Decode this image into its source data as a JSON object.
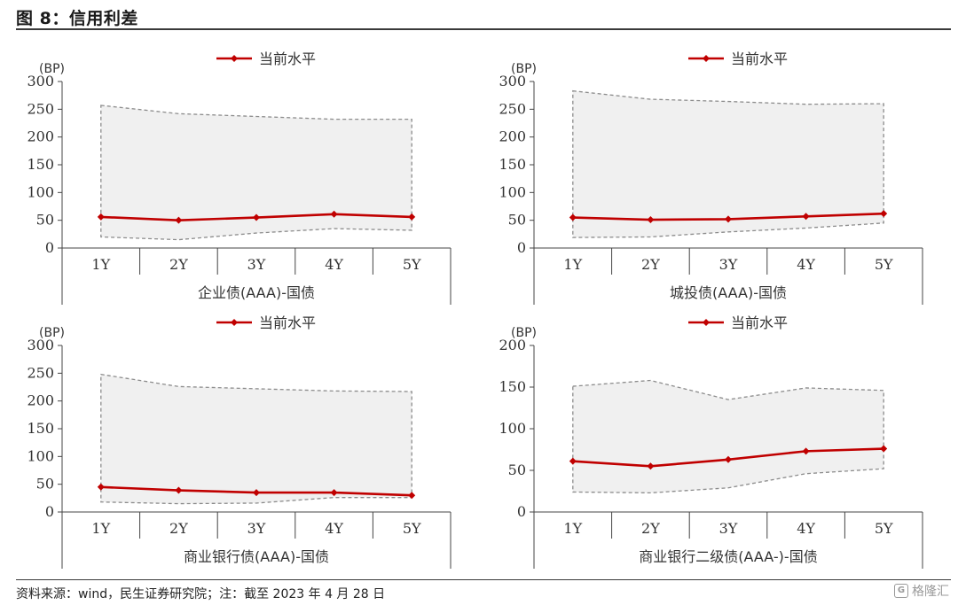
{
  "figure": {
    "title": "图 8：信用利差",
    "source": "资料来源：wind，民生证券研究院；注：截至 2023 年 4 月 28 日",
    "watermark": "格隆汇"
  },
  "colors": {
    "line": "#c00000",
    "band_fill": "#f0f0f0",
    "band_stroke": "#8c8c8c",
    "axis": "#444444"
  },
  "chart_data": [
    {
      "type": "line",
      "title": "",
      "xlabel": "企业债(AAA)-国债",
      "ylabel": "(BP)",
      "categories": [
        "1Y",
        "2Y",
        "3Y",
        "4Y",
        "5Y"
      ],
      "ylim": [
        0,
        300
      ],
      "yticks": [
        0,
        50,
        100,
        150,
        200,
        250,
        300
      ],
      "legend": "top-center",
      "series": [
        {
          "name": "当前水平",
          "values": [
            56,
            50,
            55,
            61,
            56
          ]
        }
      ],
      "range_band": {
        "upper": [
          257,
          242,
          237,
          232,
          232
        ],
        "lower": [
          20,
          15,
          27,
          35,
          32
        ]
      }
    },
    {
      "type": "line",
      "title": "",
      "xlabel": "城投债(AAA)-国债",
      "ylabel": "(BP)",
      "categories": [
        "1Y",
        "2Y",
        "3Y",
        "4Y",
        "5Y"
      ],
      "ylim": [
        0,
        300
      ],
      "yticks": [
        0,
        50,
        100,
        150,
        200,
        250,
        300
      ],
      "legend": "top-center",
      "series": [
        {
          "name": "当前水平",
          "values": [
            55,
            51,
            52,
            57,
            62
          ]
        }
      ],
      "range_band": {
        "upper": [
          283,
          268,
          264,
          259,
          260
        ],
        "lower": [
          19,
          20,
          29,
          36,
          45
        ]
      }
    },
    {
      "type": "line",
      "title": "",
      "xlabel": "商业银行债(AAA)-国债",
      "ylabel": "(BP)",
      "categories": [
        "1Y",
        "2Y",
        "3Y",
        "4Y",
        "5Y"
      ],
      "ylim": [
        0,
        300
      ],
      "yticks": [
        0,
        50,
        100,
        150,
        200,
        250,
        300
      ],
      "legend": "top-center",
      "series": [
        {
          "name": "当前水平",
          "values": [
            45,
            39,
            35,
            35,
            30
          ]
        }
      ],
      "range_band": {
        "upper": [
          248,
          226,
          222,
          218,
          217
        ],
        "lower": [
          18,
          15,
          16,
          26,
          26
        ]
      }
    },
    {
      "type": "line",
      "title": "",
      "xlabel": "商业银行二级债(AAA-)-国债",
      "ylabel": "(BP)",
      "categories": [
        "1Y",
        "2Y",
        "3Y",
        "4Y",
        "5Y"
      ],
      "ylim": [
        0,
        200
      ],
      "yticks": [
        0,
        50,
        100,
        150,
        200
      ],
      "legend": "top-center",
      "series": [
        {
          "name": "当前水平",
          "values": [
            61,
            55,
            63,
            73,
            76
          ]
        }
      ],
      "range_band": {
        "upper": [
          151,
          158,
          135,
          149,
          146
        ],
        "lower": [
          24,
          23,
          29,
          46,
          52
        ]
      }
    }
  ]
}
